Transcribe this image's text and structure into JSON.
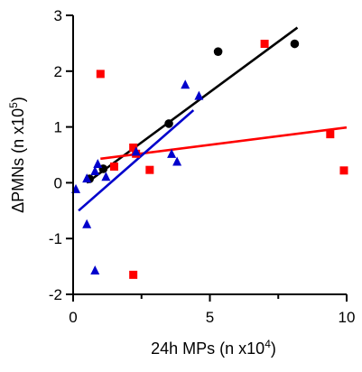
{
  "chart_data": {
    "type": "scatter",
    "title": "",
    "xlabel": {
      "prefix": "24h  MPs (n x10",
      "sup": "4",
      "suffix": ")"
    },
    "ylabel": {
      "prefix": "ΔPMNs (n x10",
      "sup": "5",
      "suffix": ")"
    },
    "xlim": [
      0,
      10
    ],
    "ylim": [
      -2,
      3
    ],
    "xticks": [
      0,
      5,
      10
    ],
    "yticks": [
      -2,
      -1,
      0,
      1,
      2,
      3
    ],
    "xminor": [
      2.5,
      7.5
    ],
    "grid": false,
    "legend": "none",
    "series": [
      {
        "marker": "circle",
        "color": "#000000",
        "points": [
          [
            0.6,
            0.07
          ],
          [
            1.1,
            0.25
          ],
          [
            3.5,
            1.06
          ],
          [
            5.3,
            2.35
          ],
          [
            8.1,
            2.49
          ]
        ],
        "fit": [
          [
            0.5,
            0.0
          ],
          [
            8.2,
            2.78
          ]
        ]
      },
      {
        "marker": "square",
        "color": "#ff0000",
        "points": [
          [
            1.0,
            1.95
          ],
          [
            1.5,
            0.29
          ],
          [
            2.2,
            0.63
          ],
          [
            2.3,
            0.52
          ],
          [
            2.8,
            0.23
          ],
          [
            7.0,
            2.49
          ],
          [
            9.4,
            0.87
          ],
          [
            9.9,
            0.22
          ],
          [
            2.2,
            -1.65
          ]
        ],
        "fit": [
          [
            1.0,
            0.43
          ],
          [
            10.0,
            0.99
          ]
        ]
      },
      {
        "marker": "triangle",
        "color": "#0000cc",
        "points": [
          [
            0.1,
            -0.12
          ],
          [
            0.5,
            0.07
          ],
          [
            0.8,
            0.2
          ],
          [
            0.9,
            0.33
          ],
          [
            1.2,
            0.1
          ],
          [
            2.3,
            0.55
          ],
          [
            3.6,
            0.51
          ],
          [
            3.8,
            0.37
          ],
          [
            4.1,
            1.75
          ],
          [
            4.6,
            1.55
          ],
          [
            0.5,
            -0.75
          ],
          [
            0.8,
            -1.58
          ]
        ],
        "fit": [
          [
            0.2,
            -0.5
          ],
          [
            4.4,
            1.3
          ]
        ]
      }
    ]
  }
}
